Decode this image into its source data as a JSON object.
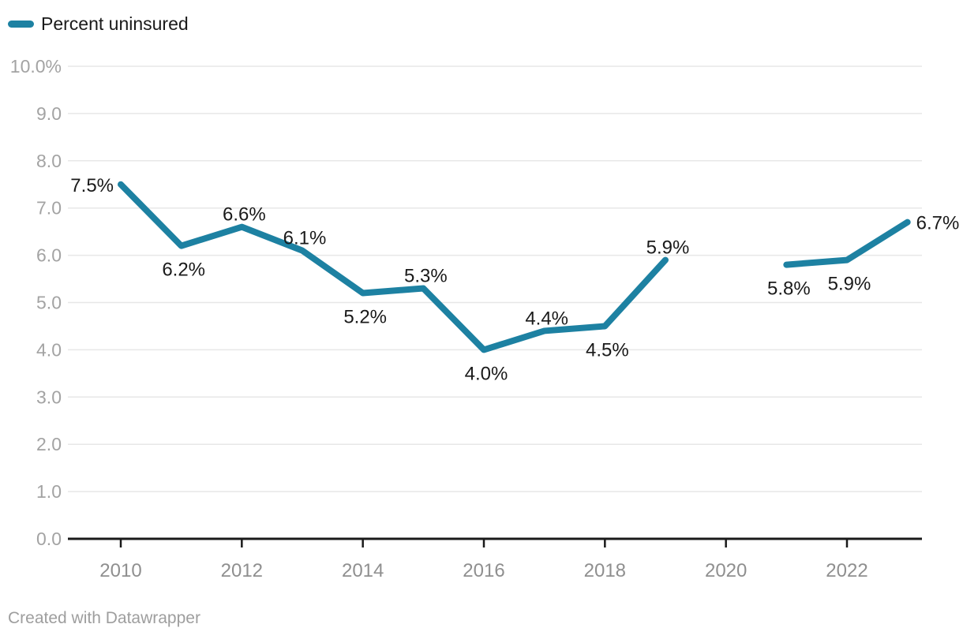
{
  "legend": {
    "label": "Percent uninsured"
  },
  "footer": {
    "text": "Created with Datawrapper"
  },
  "colors": {
    "line": "#1d81a2",
    "grid": "#e7e7e7",
    "axis": "#1a1a1a",
    "label": "#1a1a1a",
    "ytick": "#a3a3a3",
    "xtick": "#8f8f8f",
    "footer": "#9e9e9e"
  },
  "chart_data": {
    "type": "line",
    "title": "",
    "legend_entries": [
      "Percent uninsured"
    ],
    "legend_position": "top-left",
    "grid": "horizontal",
    "x": [
      2010,
      2011,
      2012,
      2013,
      2014,
      2015,
      2016,
      2017,
      2018,
      2019,
      2020,
      2021,
      2022,
      2023
    ],
    "series": [
      {
        "name": "Percent uninsured",
        "values": [
          7.5,
          6.2,
          6.6,
          6.1,
          5.2,
          5.3,
          4.0,
          4.4,
          4.5,
          5.9,
          null,
          5.8,
          5.9,
          6.7
        ]
      }
    ],
    "point_labels": [
      "7.5%",
      "6.2%",
      "6.6%",
      "6.1%",
      "5.2%",
      "5.3%",
      "4.0%",
      "4.4%",
      "4.5%",
      "5.9%",
      null,
      "5.8%",
      "5.9%",
      "6.7%"
    ],
    "label_positions": [
      "left",
      "below",
      "above",
      "above",
      "below",
      "above",
      "below",
      "above",
      "below",
      "above",
      null,
      "below",
      "below",
      "right"
    ],
    "xlabel": "",
    "ylabel": "",
    "ylim": [
      0,
      10
    ],
    "yticks": [
      0,
      1,
      2,
      3,
      4,
      5,
      6,
      7,
      8,
      9,
      10
    ],
    "ytick_labels": [
      "0.0",
      "1.0",
      "2.0",
      "3.0",
      "4.0",
      "5.0",
      "6.0",
      "7.0",
      "8.0",
      "9.0",
      "10.0%"
    ],
    "xticks": [
      2010,
      2012,
      2014,
      2016,
      2018,
      2020,
      2022
    ],
    "xtick_labels": [
      "2010",
      "2012",
      "2014",
      "2016",
      "2018",
      "2020",
      "2022"
    ]
  }
}
